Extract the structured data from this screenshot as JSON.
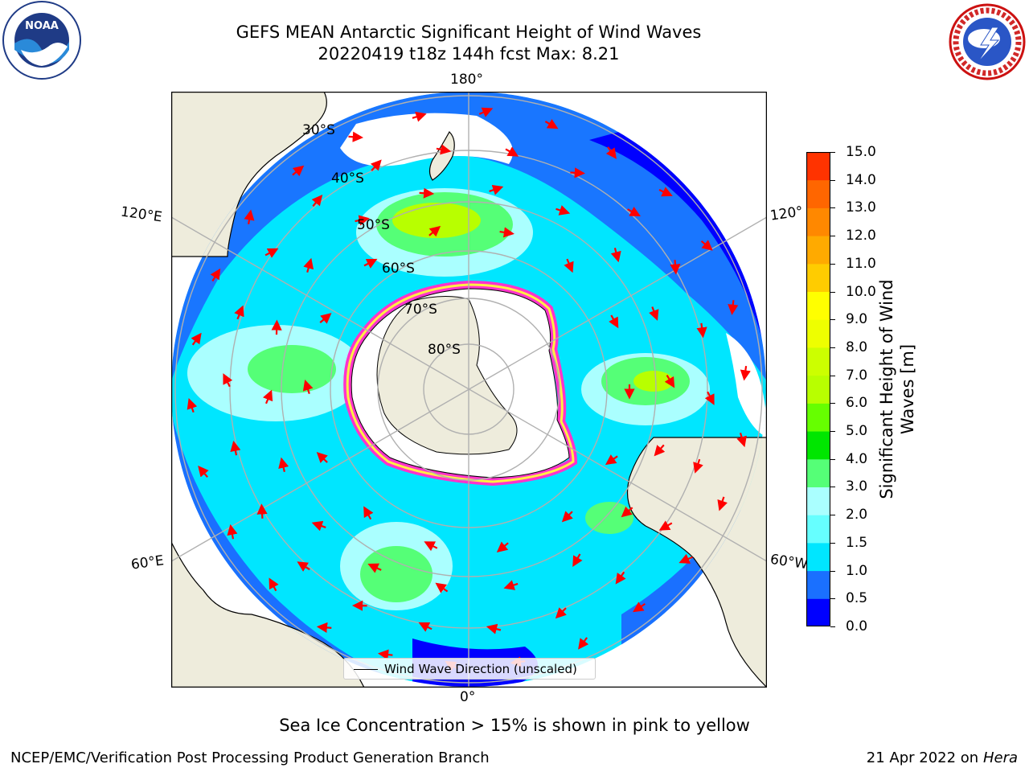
{
  "title": {
    "line1": "GEFS MEAN Antarctic Significant Height of Wind Waves",
    "line2": "20220419 t18z 144h fcst   Max: 8.21"
  },
  "logos": {
    "left": "noaa-logo",
    "right": "national-weather-service-logo",
    "left_text": "NOAA",
    "right_text": "NATIONAL WEATHER SERVICE"
  },
  "map": {
    "projection": "south polar stereographic",
    "longitude_labels": {
      "top": "180°",
      "bottom": "0°",
      "upper_left": "120°E",
      "upper_right": "120°",
      "lower_left": "60°E",
      "lower_right": "60°W"
    },
    "latitude_labels": [
      "30°S",
      "40°S",
      "50°S",
      "60°S",
      "70°S",
      "80°S"
    ],
    "land_color": "#eeecdc",
    "ocean_outside_color": "#ffffff",
    "arrow_color": "#ff0000",
    "sea_ice_colors": [
      "#ff33cc",
      "#ffaa00",
      "#ffee44"
    ]
  },
  "legend": {
    "label": "Wind Wave Direction (unscaled)"
  },
  "colorbar": {
    "label": "Significant Height of Wind Waves [m]",
    "ticks": [
      "15.0",
      "14.0",
      "13.0",
      "12.0",
      "11.0",
      "10.0",
      "9.0",
      "8.0",
      "7.0",
      "6.0",
      "5.0",
      "4.0",
      "3.0",
      "2.0",
      "1.5",
      "1.0",
      "0.5",
      "0.0"
    ],
    "colors": [
      "#0000ff",
      "#1a70ff",
      "#00e6ff",
      "#66ffff",
      "#aaffff",
      "#55ff77",
      "#00e600",
      "#66ff00",
      "#b8ff00",
      "#ccff00",
      "#eeff00",
      "#ffff00",
      "#ffcc00",
      "#ffaa00",
      "#ff8800",
      "#ff6600",
      "#ff3300"
    ]
  },
  "footer": {
    "sea_ice_note": "Sea Ice Concentration > 15% is shown in pink to yellow",
    "credit": "NCEP/EMC/Verification Post Processing Product Generation Branch",
    "date_prefix": "21 Apr 2022 on ",
    "date_machine": "Hera"
  }
}
